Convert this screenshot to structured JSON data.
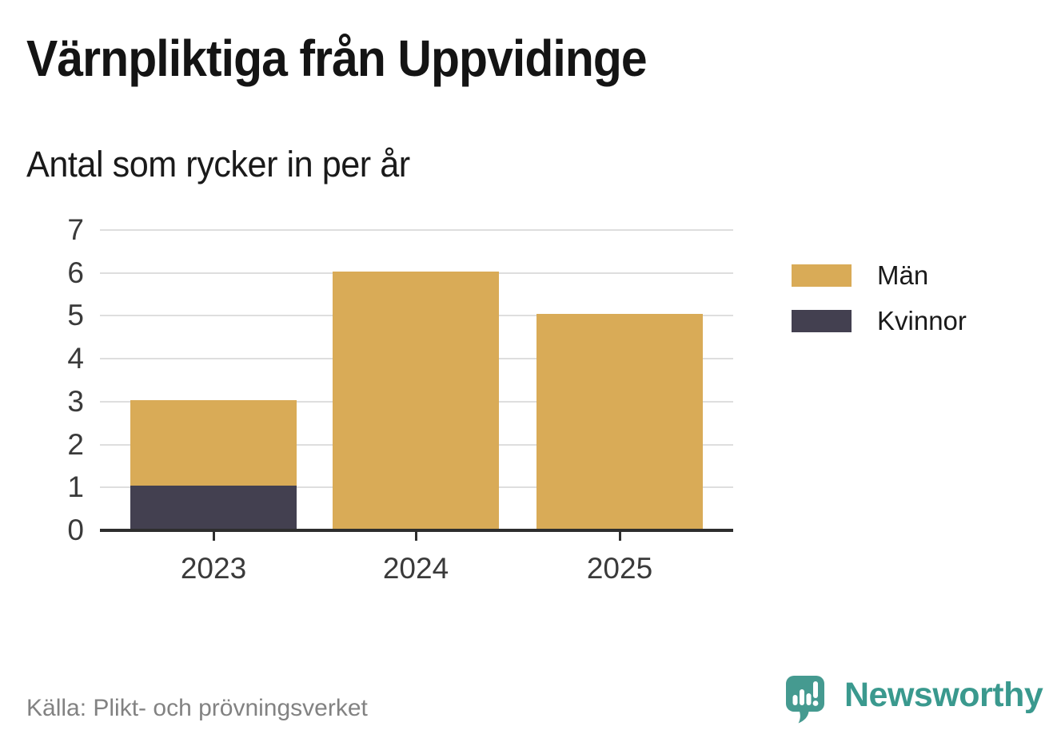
{
  "header": {
    "title": "Värnpliktiga från Uppvidinge",
    "subtitle": "Antal som rycker in per år"
  },
  "chart_data": {
    "type": "bar",
    "stacked": true,
    "title": "Värnpliktiga från Uppvidinge",
    "subtitle": "Antal som rycker in per år",
    "categories": [
      "2023",
      "2024",
      "2025"
    ],
    "series": [
      {
        "name": "Män",
        "color": "#d9ab57",
        "values": [
          2,
          6,
          5
        ]
      },
      {
        "name": "Kvinnor",
        "color": "#434050",
        "values": [
          1,
          0,
          0
        ]
      }
    ],
    "stack_totals": [
      3,
      6,
      5
    ],
    "xlabel": "",
    "ylabel": "",
    "ylim": [
      0,
      7
    ],
    "yticks": [
      0,
      1,
      2,
      3,
      4,
      5,
      6,
      7
    ],
    "grid": "horizontal-only",
    "legend_position": "right"
  },
  "footer": {
    "source": "Källa: Plikt- och prövningsverket",
    "brand": "Newsworthy"
  },
  "colors": {
    "men_bar": "#d9ab57",
    "women_bar": "#434050",
    "gridline": "#dedede",
    "axis": "#2e2e2e",
    "brand_teal": "#3a998e",
    "source_text": "#828282"
  }
}
